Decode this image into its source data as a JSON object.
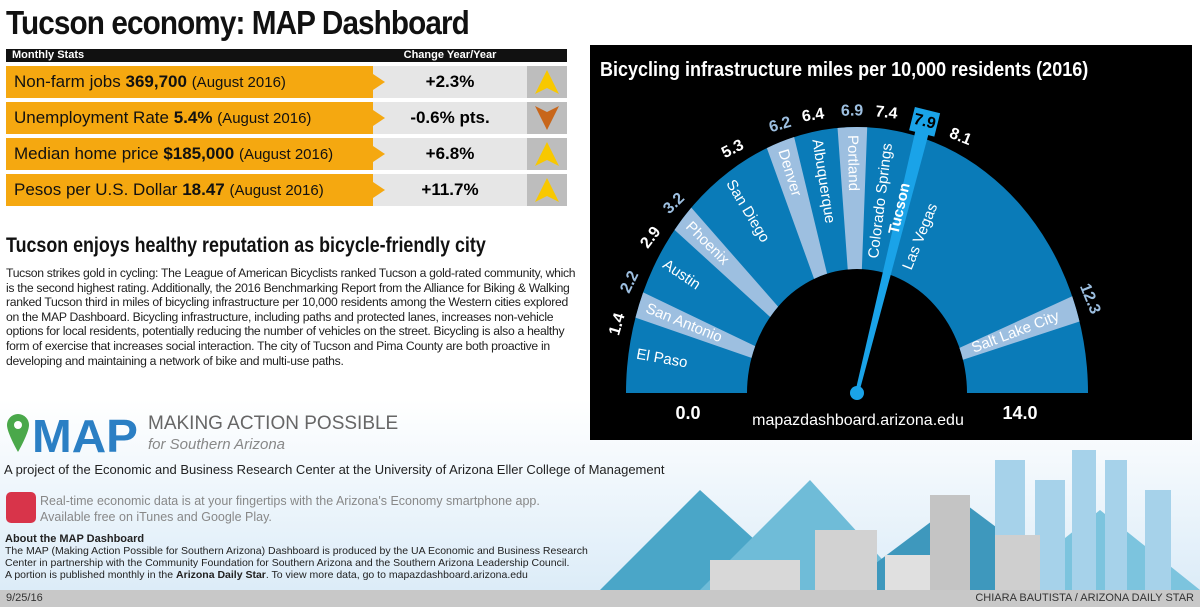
{
  "title": "Tucson economy: MAP Dashboard",
  "stats": {
    "header_left": "Monthly Stats",
    "header_right": "Change Year/Year",
    "rows": [
      {
        "label": "Non-farm jobs",
        "value": "369,700",
        "date": "(August 2016)",
        "change": "+2.3%",
        "direction": "up"
      },
      {
        "label": "Unemployment Rate",
        "value": "5.4%",
        "date": "(August 2016)",
        "change": "-0.6% pts.",
        "direction": "down"
      },
      {
        "label": "Median home price",
        "value": "$185,000",
        "date": "(August 2016)",
        "change": "+6.8%",
        "direction": "up"
      },
      {
        "label": "Pesos per U.S. Dollar",
        "value": "18.47",
        "date": "(August 2016)",
        "change": "+11.7%",
        "direction": "up"
      }
    ],
    "colors": {
      "label_bg": "#f5a810",
      "up": "#f8c800",
      "down": "#c8661a"
    }
  },
  "article": {
    "heading": "Tucson enjoys healthy reputation as bicycle-friendly city",
    "body": "Tucson strikes gold in cycling: The League of American Bicyclists ranked Tucson a gold-rated community, which is the second highest rating. Additionally, the 2016 Benchmarking Report from the Alliance for Biking & Walking ranked Tucson third in miles of bicycling infrastructure per 10,000 residents among the Western cities explored on the MAP Dashboard. Bicycling infrastructure, including paths and protected lanes, increases non-vehicle options for local residents, potentially reducing the number of vehicles on the street. Bicycling is also a healthy form of exercise that increases social interaction. The city of Tucson and Pima County are both proactive in developing and maintaining a network of bike and multi-use paths."
  },
  "chart_data": {
    "type": "gauge",
    "title": "Bicycling infrastructure miles per 10,000 residents (2016)",
    "range": [
      0,
      14
    ],
    "min_label": "0.0",
    "max_label": "14.0",
    "source": "mapazdashboard.arizona.edu",
    "points": [
      {
        "city": "El Paso",
        "value": 1.4,
        "label": "1.4",
        "highlight": false
      },
      {
        "city": "San Antonio",
        "value": 2.2,
        "label": "2.2",
        "highlight": true
      },
      {
        "city": "Austin",
        "value": 2.9,
        "label": "2.9",
        "highlight": false
      },
      {
        "city": "Phoenix",
        "value": 3.2,
        "label": "3.2",
        "highlight": true
      },
      {
        "city": "San Diego",
        "value": 5.3,
        "label": "5.3",
        "highlight": false
      },
      {
        "city": "Denver",
        "value": 6.2,
        "label": "6.2",
        "highlight": true
      },
      {
        "city": "Albuquerque",
        "value": 6.4,
        "label": "6.4",
        "highlight": false
      },
      {
        "city": "Portland",
        "value": 6.9,
        "label": "6.9",
        "highlight": true
      },
      {
        "city": "Colorado Springs",
        "value": 7.4,
        "label": "7.4",
        "highlight": false
      },
      {
        "city": "Tucson",
        "value": 7.9,
        "label": "7.9",
        "needle": true
      },
      {
        "city": "Las Vegas",
        "value": 8.1,
        "label": "8.1",
        "highlight": false
      },
      {
        "city": "Salt Lake City",
        "value": 12.3,
        "label": "12.3",
        "highlight": true
      }
    ],
    "colors": {
      "band": "#0a7bb8",
      "highlight": "#9dbfe0",
      "needle": "#1aa3e8",
      "background": "#000000"
    }
  },
  "brand": {
    "logo_text": "MAP",
    "line1": "MAKING ACTION POSSIBLE",
    "line2": "for Southern Arizona",
    "project": "A project of the Economic and Business Research Center at the University of Arizona Eller College of Management",
    "app_line1": "Real-time economic data is at your fingertips with the Arizona's Economy smartphone app.",
    "app_line2": "Available free on iTunes and Google Play."
  },
  "about": {
    "heading": "About the MAP Dashboard",
    "line1": "The MAP (Making Action Possible for Southern Arizona) Dashboard is produced by the UA Economic and Business Research",
    "line2": "Center in partnership with the Community Foundation for Southern Arizona and the Southern Arizona Leadership Council.",
    "line3_a": "A portion is published monthly in the ",
    "line3_b": "Arizona Daily Star",
    "line3_c": ". To view more data, go to mapazdashboard.arizona.edu"
  },
  "footer": {
    "date": "9/25/16",
    "credit": "CHIARA BAUTISTA / ARIZONA DAILY STAR"
  }
}
